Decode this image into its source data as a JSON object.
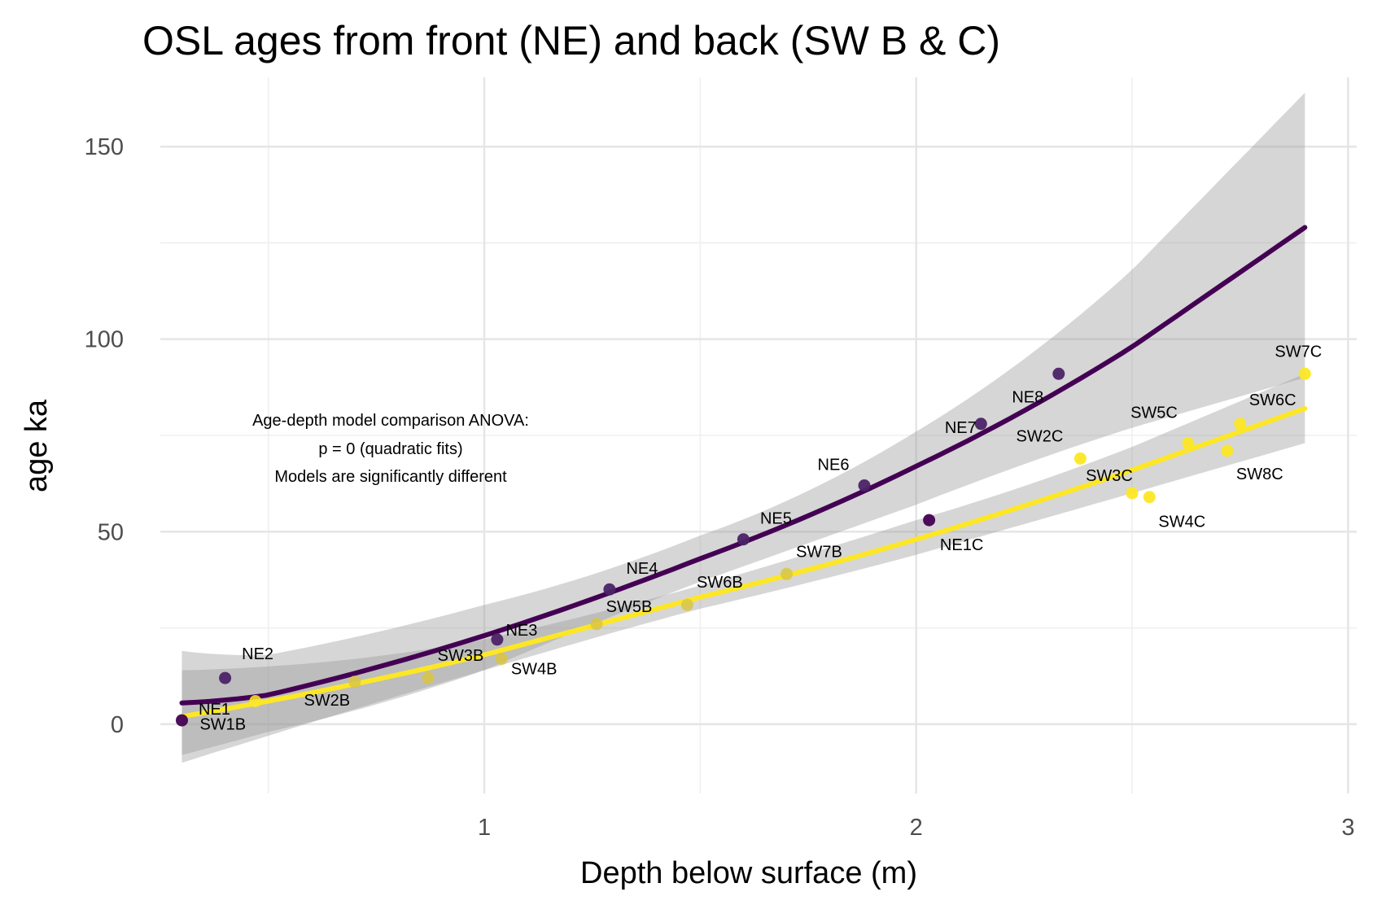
{
  "chart_data": {
    "type": "scatter",
    "title": "OSL ages from front (NE) and back (SW B & C)",
    "xlabel": "Depth below surface (m)",
    "ylabel": "age ka",
    "xlim": [
      0.25,
      3.02
    ],
    "ylim": [
      -18,
      168
    ],
    "x_ticks": [
      1,
      2,
      3
    ],
    "x_tick_labels": [
      "1",
      "2",
      "3"
    ],
    "y_ticks": [
      0,
      50,
      100,
      150
    ],
    "y_tick_labels": [
      "0",
      "50",
      "100",
      "150"
    ],
    "grid": true,
    "legend": "none",
    "annotation": [
      "Age-depth model comparison ANOVA:",
      "p = 0 (quadratic fits)",
      "Models are  significantly different"
    ],
    "series": [
      {
        "name": "NE",
        "color_light": "#4b2366",
        "color_dark": "#440154",
        "line_color": "#440154",
        "fit": {
          "type": "quadratic",
          "x": [
            0.3,
            0.5,
            1.0,
            1.5,
            2.0,
            2.5,
            2.9
          ],
          "y": [
            5.5,
            7.6,
            23,
            43,
            67,
            98,
            129
          ]
        },
        "ci_band": {
          "x": [
            0.3,
            0.5,
            1.0,
            1.5,
            2.0,
            2.5,
            2.9
          ],
          "lower": [
            -8,
            -2,
            14,
            37,
            57,
            77,
            90
          ],
          "upper": [
            19,
            18,
            31,
            49,
            76,
            118,
            164
          ]
        },
        "points": [
          {
            "label": "NE1",
            "x": 0.3,
            "y": 1
          },
          {
            "label": "NE2",
            "x": 0.4,
            "y": 12
          },
          {
            "label": "NE3",
            "x": 1.03,
            "y": 22
          },
          {
            "label": "NE4",
            "x": 1.29,
            "y": 35
          },
          {
            "label": "NE5",
            "x": 1.6,
            "y": 48
          },
          {
            "label": "NE6",
            "x": 1.88,
            "y": 62
          },
          {
            "label": "NE1C",
            "x": 2.03,
            "y": 53
          },
          {
            "label": "NE7",
            "x": 2.15,
            "y": 78
          },
          {
            "label": "NE8",
            "x": 2.33,
            "y": 91
          }
        ]
      },
      {
        "name": "SW",
        "color_light": "#d9c641",
        "color_dark": "#fde725",
        "line_color": "#fde725",
        "fit": {
          "type": "quadratic",
          "x": [
            0.3,
            0.5,
            1.0,
            1.5,
            2.0,
            2.5,
            2.9
          ],
          "y": [
            2,
            6,
            18,
            33,
            48,
            66,
            82
          ]
        },
        "ci_band": {
          "x": [
            0.3,
            0.5,
            1.0,
            1.5,
            2.0,
            2.5,
            2.9
          ],
          "lower": [
            -10,
            -3,
            14,
            30,
            44,
            60,
            73
          ],
          "upper": [
            14,
            15,
            22,
            36,
            53,
            72,
            91
          ]
        },
        "points": [
          {
            "label": "SW1B",
            "x": 0.47,
            "y": 6
          },
          {
            "label": "SW2B",
            "x": 0.7,
            "y": 11
          },
          {
            "label": "SW3B",
            "x": 0.87,
            "y": 12
          },
          {
            "label": "SW4B",
            "x": 1.04,
            "y": 17
          },
          {
            "label": "SW5B",
            "x": 1.26,
            "y": 26
          },
          {
            "label": "SW6B",
            "x": 1.47,
            "y": 31
          },
          {
            "label": "SW7B",
            "x": 1.7,
            "y": 39
          },
          {
            "label": "SW2C",
            "x": 2.38,
            "y": 69
          },
          {
            "label": "SW3C",
            "x": 2.5,
            "y": 60
          },
          {
            "label": "SW4C",
            "x": 2.54,
            "y": 59
          },
          {
            "label": "SW5C",
            "x": 2.63,
            "y": 73
          },
          {
            "label": "SW8C",
            "x": 2.72,
            "y": 71
          },
          {
            "label": "SW6C",
            "x": 2.75,
            "y": 78
          },
          {
            "label": "SW7C",
            "x": 2.9,
            "y": 91
          }
        ]
      }
    ]
  }
}
